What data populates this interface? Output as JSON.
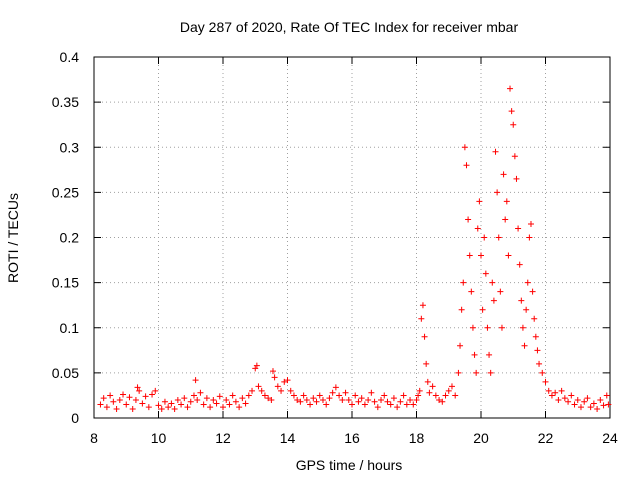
{
  "chart_data": {
    "type": "scatter",
    "title": "Day 287 of 2020, Rate Of TEC Index for receiver mbar",
    "xlabel": "GPS time / hours",
    "ylabel": "ROTI / TECUs",
    "xlim": [
      8,
      24
    ],
    "ylim": [
      0,
      0.4
    ],
    "x_ticks": [
      8,
      10,
      12,
      14,
      16,
      18,
      20,
      22,
      24
    ],
    "y_ticks": [
      0,
      0.05,
      0.1,
      0.15,
      0.2,
      0.25,
      0.3,
      0.35,
      0.4
    ],
    "x_tick_labels": [
      "8",
      "10",
      "12",
      "14",
      "16",
      "18",
      "20",
      "22",
      "24"
    ],
    "y_tick_labels": [
      "0",
      "0.05",
      "0.1",
      "0.15",
      "0.2",
      "0.25",
      "0.3",
      "0.35",
      "0.4"
    ],
    "grid": true,
    "marker": "+",
    "marker_color": "#ff0000",
    "series": [
      {
        "name": "ROTI",
        "points": [
          [
            8.2,
            0.015
          ],
          [
            8.3,
            0.022
          ],
          [
            8.4,
            0.012
          ],
          [
            8.5,
            0.025
          ],
          [
            8.6,
            0.018
          ],
          [
            8.7,
            0.01
          ],
          [
            8.8,
            0.02
          ],
          [
            8.9,
            0.026
          ],
          [
            9.0,
            0.015
          ],
          [
            9.1,
            0.023
          ],
          [
            9.2,
            0.01
          ],
          [
            9.3,
            0.02
          ],
          [
            9.35,
            0.034
          ],
          [
            9.4,
            0.03
          ],
          [
            9.5,
            0.016
          ],
          [
            9.6,
            0.024
          ],
          [
            9.7,
            0.012
          ],
          [
            9.8,
            0.026
          ],
          [
            9.9,
            0.03
          ],
          [
            10.0,
            0.014
          ],
          [
            10.1,
            0.01
          ],
          [
            10.2,
            0.018
          ],
          [
            10.3,
            0.012
          ],
          [
            10.4,
            0.016
          ],
          [
            10.5,
            0.01
          ],
          [
            10.6,
            0.02
          ],
          [
            10.7,
            0.015
          ],
          [
            10.8,
            0.022
          ],
          [
            10.9,
            0.012
          ],
          [
            11.0,
            0.018
          ],
          [
            11.1,
            0.025
          ],
          [
            11.15,
            0.042
          ],
          [
            11.2,
            0.02
          ],
          [
            11.3,
            0.028
          ],
          [
            11.4,
            0.015
          ],
          [
            11.5,
            0.022
          ],
          [
            11.6,
            0.012
          ],
          [
            11.7,
            0.02
          ],
          [
            11.8,
            0.016
          ],
          [
            11.9,
            0.024
          ],
          [
            12.0,
            0.012
          ],
          [
            12.1,
            0.02
          ],
          [
            12.2,
            0.015
          ],
          [
            12.3,
            0.025
          ],
          [
            12.4,
            0.018
          ],
          [
            12.5,
            0.012
          ],
          [
            12.6,
            0.022
          ],
          [
            12.7,
            0.016
          ],
          [
            12.8,
            0.025
          ],
          [
            12.9,
            0.03
          ],
          [
            13.0,
            0.055
          ],
          [
            13.05,
            0.058
          ],
          [
            13.1,
            0.035
          ],
          [
            13.2,
            0.03
          ],
          [
            13.3,
            0.025
          ],
          [
            13.4,
            0.022
          ],
          [
            13.5,
            0.02
          ],
          [
            13.55,
            0.052
          ],
          [
            13.6,
            0.045
          ],
          [
            13.7,
            0.035
          ],
          [
            13.8,
            0.03
          ],
          [
            13.9,
            0.04
          ],
          [
            14.0,
            0.042
          ],
          [
            14.1,
            0.03
          ],
          [
            14.2,
            0.025
          ],
          [
            14.3,
            0.02
          ],
          [
            14.4,
            0.018
          ],
          [
            14.5,
            0.025
          ],
          [
            14.6,
            0.02
          ],
          [
            14.7,
            0.015
          ],
          [
            14.8,
            0.022
          ],
          [
            14.9,
            0.018
          ],
          [
            15.0,
            0.025
          ],
          [
            15.1,
            0.02
          ],
          [
            15.2,
            0.015
          ],
          [
            15.3,
            0.022
          ],
          [
            15.4,
            0.028
          ],
          [
            15.5,
            0.034
          ],
          [
            15.6,
            0.025
          ],
          [
            15.7,
            0.02
          ],
          [
            15.8,
            0.028
          ],
          [
            15.9,
            0.02
          ],
          [
            16.0,
            0.015
          ],
          [
            16.1,
            0.025
          ],
          [
            16.2,
            0.018
          ],
          [
            16.3,
            0.022
          ],
          [
            16.4,
            0.015
          ],
          [
            16.5,
            0.02
          ],
          [
            16.6,
            0.028
          ],
          [
            16.7,
            0.018
          ],
          [
            16.8,
            0.012
          ],
          [
            16.9,
            0.02
          ],
          [
            17.0,
            0.025
          ],
          [
            17.1,
            0.018
          ],
          [
            17.2,
            0.015
          ],
          [
            17.3,
            0.022
          ],
          [
            17.4,
            0.012
          ],
          [
            17.5,
            0.018
          ],
          [
            17.6,
            0.025
          ],
          [
            17.7,
            0.015
          ],
          [
            17.8,
            0.02
          ],
          [
            17.9,
            0.015
          ],
          [
            18.0,
            0.02
          ],
          [
            18.05,
            0.025
          ],
          [
            18.1,
            0.03
          ],
          [
            18.15,
            0.11
          ],
          [
            18.2,
            0.125
          ],
          [
            18.25,
            0.09
          ],
          [
            18.3,
            0.06
          ],
          [
            18.35,
            0.04
          ],
          [
            18.4,
            0.028
          ],
          [
            18.5,
            0.035
          ],
          [
            18.6,
            0.025
          ],
          [
            18.7,
            0.02
          ],
          [
            18.8,
            0.018
          ],
          [
            18.9,
            0.025
          ],
          [
            19.0,
            0.03
          ],
          [
            19.1,
            0.035
          ],
          [
            19.2,
            0.025
          ],
          [
            19.3,
            0.05
          ],
          [
            19.35,
            0.08
          ],
          [
            19.4,
            0.12
          ],
          [
            19.45,
            0.15
          ],
          [
            19.5,
            0.3
          ],
          [
            19.55,
            0.28
          ],
          [
            19.6,
            0.22
          ],
          [
            19.65,
            0.18
          ],
          [
            19.7,
            0.14
          ],
          [
            19.75,
            0.1
          ],
          [
            19.8,
            0.07
          ],
          [
            19.85,
            0.05
          ],
          [
            19.9,
            0.21
          ],
          [
            19.95,
            0.24
          ],
          [
            20.0,
            0.18
          ],
          [
            20.05,
            0.12
          ],
          [
            20.1,
            0.2
          ],
          [
            20.15,
            0.16
          ],
          [
            20.2,
            0.1
          ],
          [
            20.25,
            0.07
          ],
          [
            20.3,
            0.05
          ],
          [
            20.35,
            0.15
          ],
          [
            20.4,
            0.13
          ],
          [
            20.45,
            0.295
          ],
          [
            20.5,
            0.25
          ],
          [
            20.55,
            0.2
          ],
          [
            20.6,
            0.14
          ],
          [
            20.65,
            0.1
          ],
          [
            20.7,
            0.27
          ],
          [
            20.75,
            0.22
          ],
          [
            20.8,
            0.24
          ],
          [
            20.85,
            0.18
          ],
          [
            20.9,
            0.365
          ],
          [
            20.95,
            0.34
          ],
          [
            21.0,
            0.325
          ],
          [
            21.05,
            0.29
          ],
          [
            21.1,
            0.265
          ],
          [
            21.15,
            0.21
          ],
          [
            21.2,
            0.17
          ],
          [
            21.25,
            0.13
          ],
          [
            21.3,
            0.1
          ],
          [
            21.35,
            0.08
          ],
          [
            21.4,
            0.12
          ],
          [
            21.45,
            0.15
          ],
          [
            21.5,
            0.2
          ],
          [
            21.55,
            0.215
          ],
          [
            21.6,
            0.14
          ],
          [
            21.65,
            0.11
          ],
          [
            21.7,
            0.09
          ],
          [
            21.75,
            0.075
          ],
          [
            21.8,
            0.06
          ],
          [
            21.9,
            0.05
          ],
          [
            22.0,
            0.04
          ],
          [
            22.1,
            0.03
          ],
          [
            22.2,
            0.025
          ],
          [
            22.3,
            0.028
          ],
          [
            22.4,
            0.02
          ],
          [
            22.5,
            0.03
          ],
          [
            22.6,
            0.022
          ],
          [
            22.7,
            0.018
          ],
          [
            22.8,
            0.025
          ],
          [
            22.9,
            0.015
          ],
          [
            23.0,
            0.02
          ],
          [
            23.1,
            0.012
          ],
          [
            23.2,
            0.018
          ],
          [
            23.3,
            0.022
          ],
          [
            23.4,
            0.012
          ],
          [
            23.5,
            0.016
          ],
          [
            23.6,
            0.01
          ],
          [
            23.7,
            0.02
          ],
          [
            23.8,
            0.014
          ],
          [
            23.9,
            0.025
          ],
          [
            23.95,
            0.015
          ]
        ]
      }
    ]
  }
}
